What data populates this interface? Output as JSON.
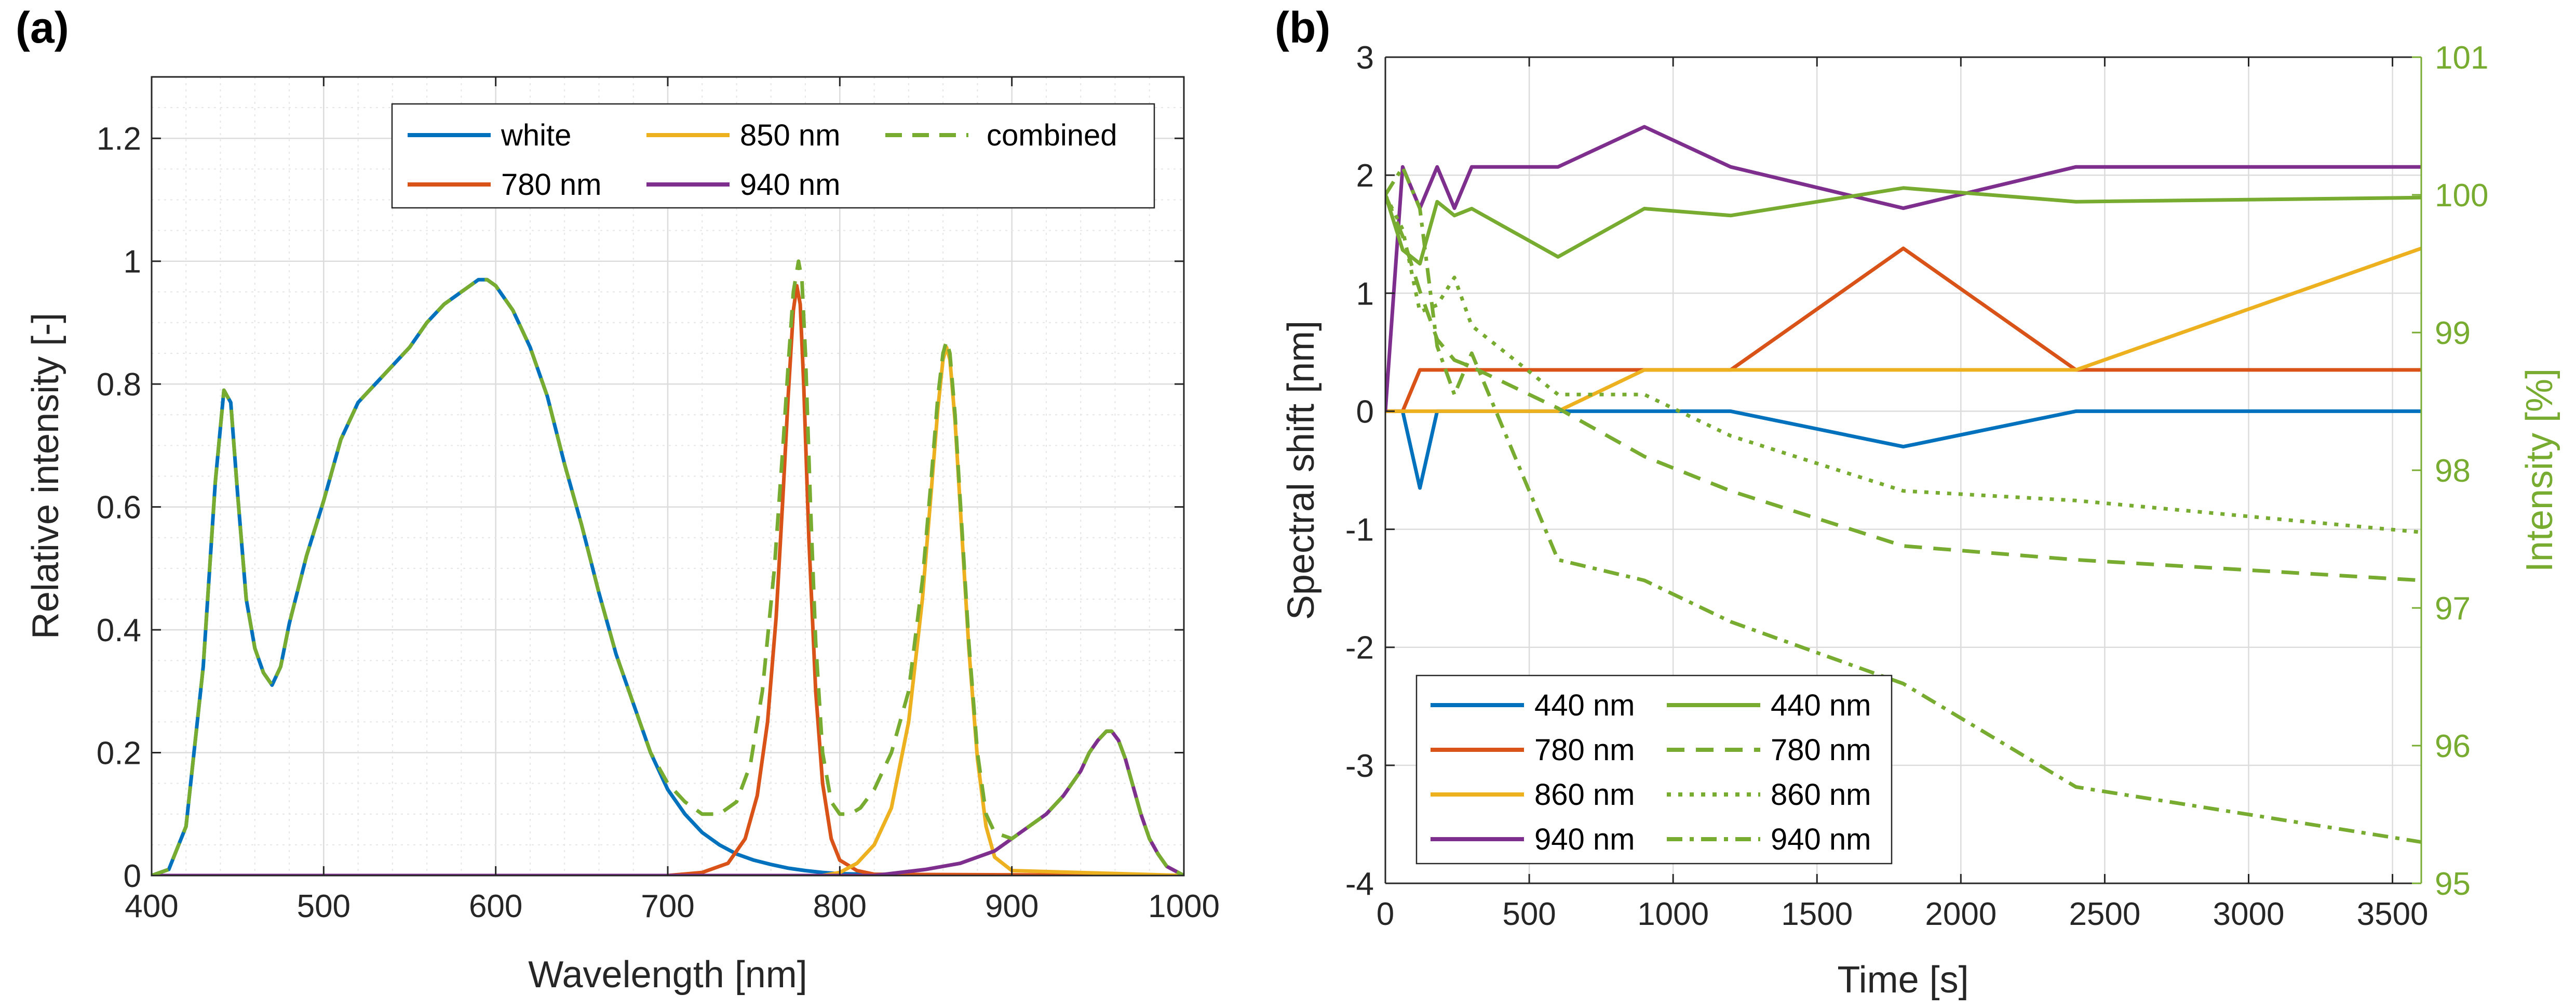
{
  "chart_data": [
    {
      "panel_label": "(a)",
      "type": "line",
      "xlabel": "Wavelength [nm]",
      "ylabel": "Relative intensity [-]",
      "xlim": [
        400,
        1000
      ],
      "ylim": [
        0,
        1.3
      ],
      "xticks": [
        400,
        500,
        600,
        700,
        800,
        900,
        1000
      ],
      "xtick_labels": [
        "400",
        "500",
        "600",
        "700",
        "800",
        "900",
        "1000"
      ],
      "yticks": [
        0,
        0.2,
        0.4,
        0.6,
        0.8,
        1,
        1.2
      ],
      "ytick_labels": [
        "0",
        "0.2",
        "0.4",
        "0.6",
        "0.8",
        "1",
        "1.2"
      ],
      "grid": "major and minor",
      "legend_position": "top-center",
      "series": [
        {
          "name": "white",
          "color": "#0072BD",
          "style": "solid",
          "x": [
            400,
            410,
            420,
            430,
            437,
            442,
            446,
            450,
            455,
            460,
            465,
            470,
            475,
            480,
            490,
            500,
            510,
            520,
            530,
            540,
            550,
            560,
            570,
            580,
            590,
            595,
            600,
            610,
            620,
            630,
            640,
            650,
            660,
            670,
            680,
            690,
            700,
            710,
            720,
            730,
            740,
            750,
            760,
            770,
            780,
            790,
            800,
            820,
            850,
            900,
            1000
          ],
          "y": [
            0,
            0.01,
            0.08,
            0.34,
            0.64,
            0.79,
            0.77,
            0.62,
            0.45,
            0.37,
            0.33,
            0.31,
            0.34,
            0.41,
            0.52,
            0.61,
            0.71,
            0.77,
            0.8,
            0.83,
            0.86,
            0.9,
            0.93,
            0.95,
            0.97,
            0.97,
            0.96,
            0.92,
            0.86,
            0.78,
            0.67,
            0.57,
            0.46,
            0.36,
            0.28,
            0.2,
            0.14,
            0.1,
            0.07,
            0.05,
            0.035,
            0.025,
            0.018,
            0.012,
            0.008,
            0.005,
            0.003,
            0.002,
            0.001,
            0,
            0
          ]
        },
        {
          "name": "780 nm",
          "color": "#D95319",
          "style": "solid",
          "x": [
            400,
            700,
            720,
            735,
            745,
            752,
            758,
            763,
            767,
            770,
            773,
            775,
            777,
            779,
            782,
            786,
            790,
            795,
            800,
            810,
            820,
            1000
          ],
          "y": [
            0,
            0,
            0.005,
            0.02,
            0.06,
            0.13,
            0.25,
            0.42,
            0.62,
            0.78,
            0.92,
            0.96,
            0.93,
            0.8,
            0.55,
            0.3,
            0.15,
            0.06,
            0.025,
            0.008,
            0.002,
            0
          ]
        },
        {
          "name": "850 nm",
          "color": "#EDB120",
          "style": "solid",
          "x": [
            400,
            790,
            800,
            810,
            820,
            830,
            840,
            848,
            853,
            857,
            860,
            862,
            864,
            867,
            870,
            875,
            880,
            885,
            890,
            900,
            1000
          ],
          "y": [
            0,
            0,
            0.005,
            0.02,
            0.05,
            0.11,
            0.25,
            0.45,
            0.62,
            0.76,
            0.84,
            0.86,
            0.84,
            0.74,
            0.6,
            0.37,
            0.19,
            0.08,
            0.03,
            0.008,
            0
          ]
        },
        {
          "name": "940 nm",
          "color": "#7E2F8E",
          "style": "solid",
          "x": [
            400,
            820,
            850,
            870,
            890,
            905,
            920,
            930,
            940,
            945,
            950,
            955,
            958,
            962,
            966,
            970,
            975,
            980,
            985,
            990,
            1000
          ],
          "y": [
            0,
            0,
            0.01,
            0.02,
            0.04,
            0.07,
            0.1,
            0.13,
            0.17,
            0.2,
            0.22,
            0.235,
            0.235,
            0.22,
            0.19,
            0.15,
            0.1,
            0.06,
            0.035,
            0.015,
            0
          ]
        },
        {
          "name": "combined",
          "color": "#77AC30",
          "style": "dashed",
          "x": [
            400,
            410,
            420,
            430,
            437,
            442,
            446,
            450,
            455,
            460,
            465,
            470,
            475,
            480,
            490,
            500,
            510,
            520,
            530,
            540,
            550,
            560,
            570,
            580,
            590,
            595,
            600,
            610,
            620,
            630,
            640,
            650,
            660,
            670,
            680,
            690,
            700,
            710,
            720,
            730,
            740,
            748,
            755,
            762,
            767,
            770,
            773,
            776,
            778,
            780,
            783,
            786,
            790,
            795,
            800,
            806,
            812,
            820,
            830,
            840,
            848,
            853,
            857,
            860,
            862,
            864,
            867,
            870,
            875,
            880,
            885,
            890,
            900,
            910,
            920,
            930,
            940,
            945,
            950,
            955,
            958,
            962,
            966,
            970,
            975,
            980,
            985,
            990,
            1000
          ],
          "y": [
            0,
            0.01,
            0.08,
            0.34,
            0.64,
            0.79,
            0.77,
            0.62,
            0.45,
            0.37,
            0.33,
            0.31,
            0.34,
            0.41,
            0.52,
            0.61,
            0.71,
            0.77,
            0.8,
            0.83,
            0.86,
            0.9,
            0.93,
            0.95,
            0.97,
            0.97,
            0.96,
            0.92,
            0.86,
            0.78,
            0.67,
            0.57,
            0.46,
            0.36,
            0.28,
            0.2,
            0.15,
            0.12,
            0.1,
            0.1,
            0.12,
            0.18,
            0.3,
            0.5,
            0.7,
            0.83,
            0.95,
            1.0,
            0.97,
            0.85,
            0.6,
            0.38,
            0.2,
            0.12,
            0.1,
            0.1,
            0.11,
            0.14,
            0.2,
            0.3,
            0.48,
            0.64,
            0.78,
            0.85,
            0.87,
            0.85,
            0.75,
            0.61,
            0.38,
            0.2,
            0.1,
            0.07,
            0.06,
            0.08,
            0.1,
            0.13,
            0.17,
            0.2,
            0.22,
            0.235,
            0.235,
            0.22,
            0.19,
            0.15,
            0.1,
            0.06,
            0.035,
            0.015,
            0
          ]
        }
      ]
    },
    {
      "panel_label": "(b)",
      "type": "line",
      "xlabel": "Time [s]",
      "ylabel_left": "Spectral shift [nm]",
      "ylabel_right": "Intensity [%]",
      "xlim": [
        0,
        3600
      ],
      "ylim_left": [
        -4,
        3
      ],
      "ylim_right": [
        95,
        101
      ],
      "xticks": [
        0,
        500,
        1000,
        1500,
        2000,
        2500,
        3000,
        3500
      ],
      "xtick_labels": [
        "0",
        "500",
        "1000",
        "1500",
        "2000",
        "2500",
        "3000",
        "3500"
      ],
      "yticks_left": [
        -4,
        -3,
        -2,
        -1,
        0,
        1,
        2,
        3
      ],
      "ytick_labels_left": [
        "-4",
        "-3",
        "-2",
        "-1",
        "0",
        "1",
        "2",
        "3"
      ],
      "yticks_right": [
        95,
        96,
        97,
        98,
        99,
        100,
        101
      ],
      "ytick_labels_right": [
        "95",
        "96",
        "97",
        "98",
        "99",
        "100",
        "101"
      ],
      "right_axis_color": "#77AC30",
      "grid": "major",
      "legend_position": "bottom-left",
      "series": [
        {
          "name": "440 nm",
          "axis": "left",
          "color": "#0072BD",
          "style": "solid",
          "x": [
            0,
            60,
            120,
            180,
            240,
            300,
            600,
            900,
            1200,
            1800,
            2400,
            3600
          ],
          "y": [
            0,
            0,
            -0.65,
            0,
            0,
            0,
            0,
            0,
            0,
            -0.3,
            0,
            0
          ]
        },
        {
          "name": "780 nm",
          "axis": "left",
          "color": "#D95319",
          "style": "solid",
          "x": [
            0,
            60,
            120,
            180,
            240,
            300,
            600,
            900,
            1200,
            1800,
            2400,
            3600
          ],
          "y": [
            0,
            0,
            0.35,
            0.35,
            0.35,
            0.35,
            0.35,
            0.35,
            0.35,
            1.38,
            0.35,
            0.35
          ]
        },
        {
          "name": "860 nm",
          "axis": "left",
          "color": "#EDB120",
          "style": "solid",
          "x": [
            0,
            60,
            120,
            180,
            240,
            300,
            600,
            900,
            1200,
            1800,
            2400,
            3600
          ],
          "y": [
            0,
            0,
            0,
            0,
            0,
            0,
            0,
            0.35,
            0.35,
            0.35,
            0.35,
            1.38
          ]
        },
        {
          "name": "940 nm",
          "axis": "left",
          "color": "#7E2F8E",
          "style": "solid",
          "x": [
            0,
            60,
            120,
            180,
            240,
            300,
            600,
            900,
            1200,
            1800,
            2400,
            3600
          ],
          "y": [
            0,
            2.07,
            1.72,
            2.07,
            1.72,
            2.07,
            2.07,
            2.41,
            2.07,
            1.72,
            2.07,
            2.07
          ]
        },
        {
          "name": "440 nm",
          "axis": "right",
          "color": "#77AC30",
          "style": "solid",
          "x": [
            0,
            60,
            120,
            180,
            240,
            300,
            600,
            900,
            1200,
            1800,
            2400,
            3600
          ],
          "y": [
            100,
            99.6,
            99.5,
            99.95,
            99.85,
            99.9,
            99.55,
            99.9,
            99.85,
            100.05,
            99.95,
            99.98
          ]
        },
        {
          "name": "780 nm",
          "axis": "right",
          "color": "#77AC30",
          "style": "dashed",
          "x": [
            0,
            60,
            120,
            180,
            240,
            300,
            600,
            900,
            1200,
            1800,
            2400,
            3600
          ],
          "y": [
            100,
            99.7,
            99.3,
            98.95,
            98.8,
            98.75,
            98.45,
            98.1,
            97.85,
            97.45,
            97.35,
            97.2
          ]
        },
        {
          "name": "860 nm",
          "axis": "right",
          "color": "#77AC30",
          "style": "dotted",
          "x": [
            0,
            60,
            120,
            180,
            240,
            300,
            600,
            900,
            1200,
            1800,
            2400,
            3600
          ],
          "y": [
            100,
            99.75,
            99.15,
            99.2,
            99.4,
            99.05,
            98.55,
            98.55,
            98.25,
            97.85,
            97.78,
            97.55
          ]
        },
        {
          "name": "940 nm",
          "axis": "right",
          "color": "#77AC30",
          "style": "dashdot",
          "x": [
            0,
            60,
            120,
            180,
            240,
            300,
            600,
            900,
            1200,
            1800,
            2400,
            3600
          ],
          "y": [
            100,
            100.2,
            99.9,
            98.9,
            98.55,
            98.85,
            97.35,
            97.2,
            96.9,
            96.45,
            95.7,
            95.3
          ]
        }
      ]
    }
  ]
}
